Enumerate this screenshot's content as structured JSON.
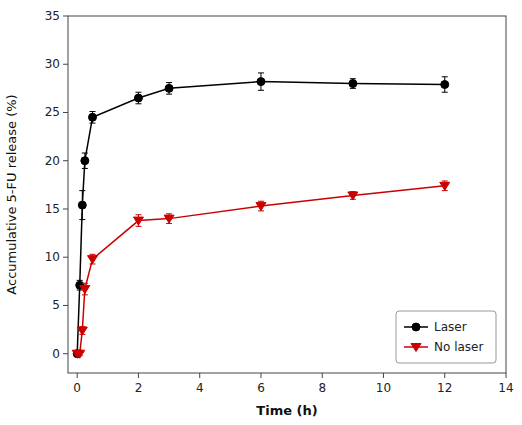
{
  "chart_data": {
    "type": "line",
    "xlabel": "Time (h)",
    "ylabel": "Accumulative 5-FU release (%)",
    "x": [
      0,
      0.083,
      0.167,
      0.25,
      0.5,
      2,
      3,
      6,
      9,
      12
    ],
    "series": [
      {
        "name": "Laser",
        "color": "#000000",
        "marker": "circle",
        "values": [
          0,
          7.1,
          15.4,
          20.0,
          24.5,
          26.5,
          27.5,
          28.2,
          28.0,
          27.9
        ],
        "errors": [
          0.0,
          0.5,
          1.5,
          0.8,
          0.6,
          0.6,
          0.6,
          0.9,
          0.5,
          0.8
        ]
      },
      {
        "name": "No laser",
        "color": "#cc0000",
        "marker": "triangle-down",
        "values": [
          0,
          0.0,
          2.4,
          6.7,
          9.8,
          13.8,
          14.0,
          15.3,
          16.4,
          17.4
        ],
        "errors": [
          0.0,
          0.2,
          0.4,
          0.6,
          0.5,
          0.6,
          0.5,
          0.5,
          0.4,
          0.5
        ]
      }
    ],
    "xlim": [
      -0.3,
      14
    ],
    "ylim": [
      -2,
      35
    ],
    "xticks": [
      0,
      2,
      4,
      6,
      8,
      10,
      12,
      14
    ],
    "yticks": [
      0,
      5,
      10,
      15,
      20,
      25,
      30,
      35
    ],
    "legend": "lower right",
    "grid": false
  }
}
